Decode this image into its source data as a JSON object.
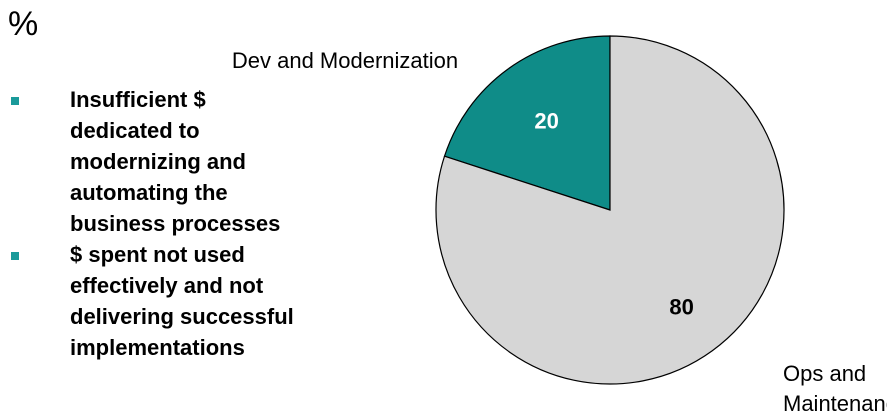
{
  "heading": "%",
  "bullets": [
    [
      "Insufficient $",
      "dedicated to",
      "modernizing and",
      "automating the",
      "business processes"
    ],
    [
      "$ spent not used",
      "effectively and not",
      "delivering successful",
      "implementations"
    ]
  ],
  "chart_data": {
    "type": "pie",
    "categories": [
      "Dev and Modernization",
      "Ops and Maintenance"
    ],
    "values": [
      20,
      80
    ],
    "colors": [
      "#0f8c88",
      "#d6d6d6"
    ]
  }
}
